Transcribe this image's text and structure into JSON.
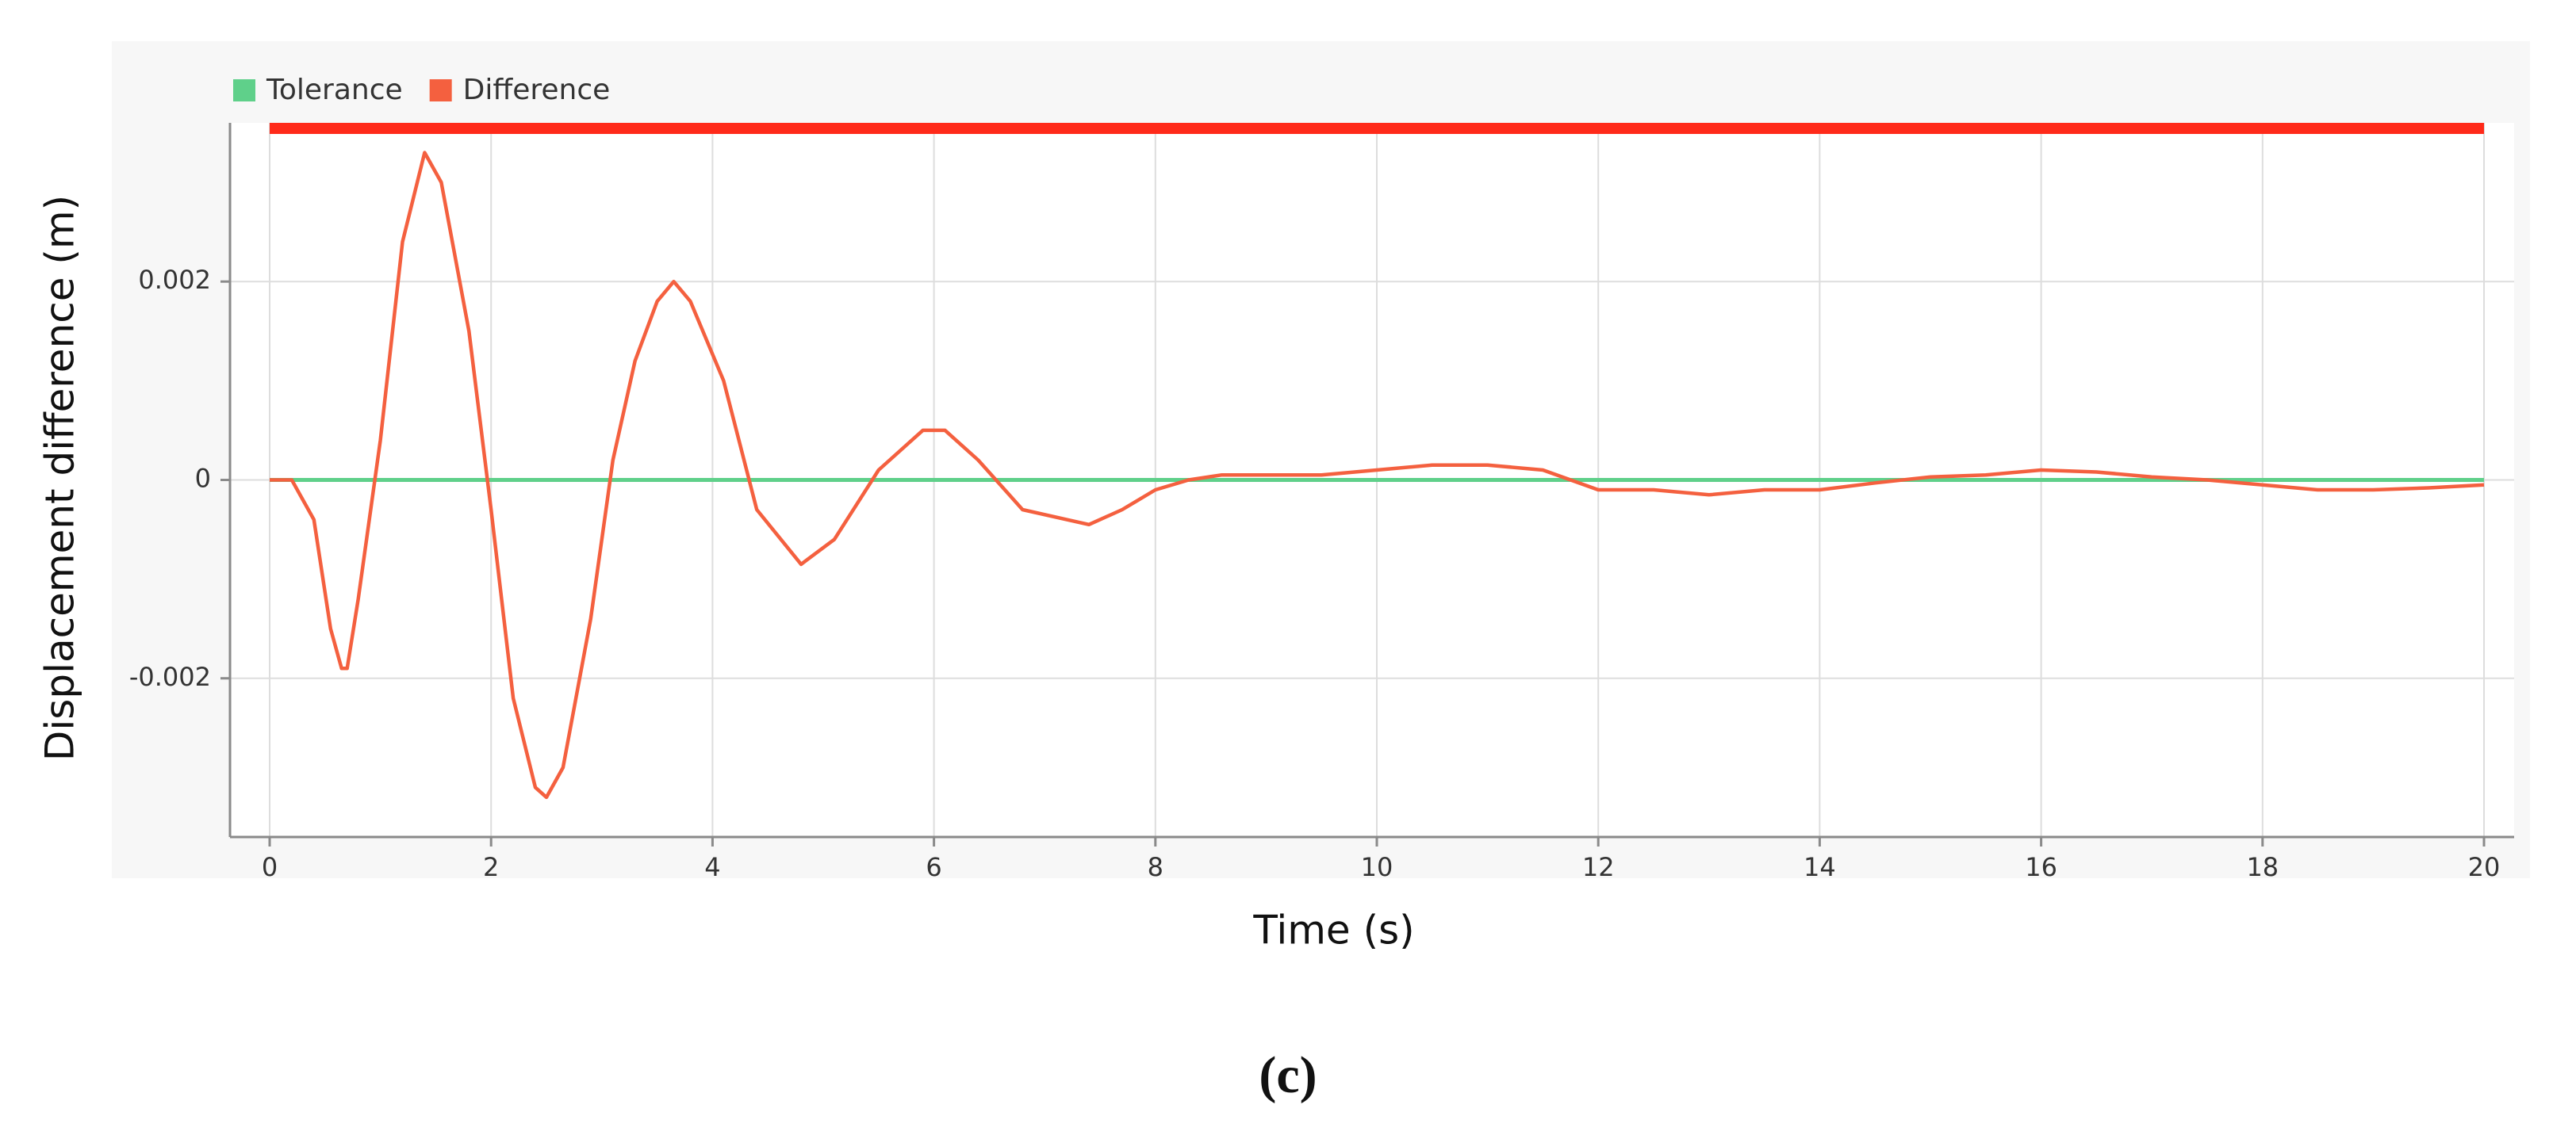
{
  "chart_data": {
    "type": "line",
    "xlabel": "Time (s)",
    "ylabel": "Displacement difference (m)",
    "caption": "(c)",
    "xlim": [
      0,
      20
    ],
    "ylim": [
      -0.0036,
      0.0036
    ],
    "xticks": [
      0,
      2,
      4,
      6,
      8,
      10,
      12,
      14,
      16,
      18,
      20
    ],
    "yticks": [
      -0.002,
      0,
      0.002
    ],
    "grid": true,
    "legend": "top-left",
    "series": [
      {
        "name": "Tolerance",
        "color": "#5fd08a",
        "x": [
          0,
          20
        ],
        "values": [
          0,
          0
        ]
      },
      {
        "name": "Difference",
        "color": "#f4603f",
        "x": [
          0,
          0.2,
          0.4,
          0.55,
          0.65,
          0.7,
          0.8,
          1.0,
          1.2,
          1.4,
          1.55,
          1.8,
          2.0,
          2.2,
          2.4,
          2.5,
          2.65,
          2.9,
          3.1,
          3.3,
          3.5,
          3.65,
          3.8,
          4.1,
          4.4,
          4.8,
          5.1,
          5.5,
          5.9,
          6.1,
          6.4,
          6.8,
          7.2,
          7.4,
          7.7,
          8.0,
          8.3,
          8.6,
          9.0,
          9.5,
          10.0,
          10.5,
          11.0,
          11.5,
          12.0,
          12.5,
          13.0,
          13.5,
          14.0,
          14.5,
          15.0,
          15.5,
          16.0,
          16.5,
          17.0,
          17.5,
          18.0,
          18.5,
          19.0,
          19.5,
          20.0
        ],
        "values": [
          0,
          0,
          -0.0004,
          -0.0015,
          -0.0019,
          -0.0019,
          -0.0012,
          0.0004,
          0.0024,
          0.0033,
          0.003,
          0.0015,
          -0.0003,
          -0.0022,
          -0.0031,
          -0.0032,
          -0.0029,
          -0.0014,
          0.0002,
          0.0012,
          0.0018,
          0.002,
          0.0018,
          0.001,
          -0.0003,
          -0.00085,
          -0.0006,
          0.0001,
          0.0005,
          0.0005,
          0.0002,
          -0.0003,
          -0.0004,
          -0.00045,
          -0.0003,
          -0.0001,
          0,
          5e-05,
          5e-05,
          5e-05,
          0.0001,
          0.00015,
          0.00015,
          0.0001,
          -0.0001,
          -0.0001,
          -0.00015,
          -0.0001,
          -0.0001,
          -3e-05,
          3e-05,
          5e-05,
          0.0001,
          8e-05,
          3e-05,
          0,
          -5e-05,
          -0.0001,
          -0.0001,
          -8e-05,
          -5e-05
        ]
      }
    ]
  }
}
